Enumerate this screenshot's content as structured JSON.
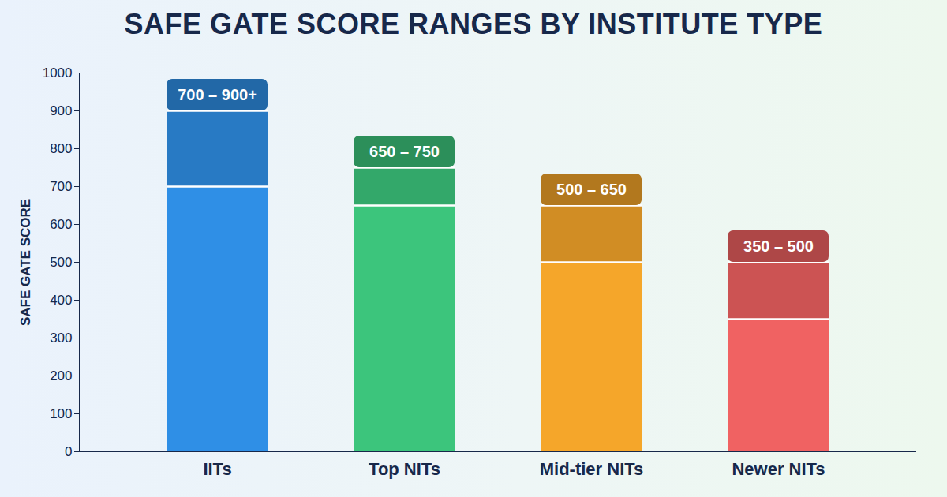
{
  "chart_data": {
    "type": "range",
    "title": "SAFE GATE SCORE RANGES BY INSTITUTE TYPE",
    "ylabel": "SAFE GATE SCORE",
    "categories": [
      "IITs",
      "Top NITs",
      "Mid-tier NITs",
      "Newer NITs"
    ],
    "values": [
      [
        700,
        900
      ],
      [
        650,
        750
      ],
      [
        500,
        650
      ],
      [
        350,
        500
      ]
    ],
    "value_labels": [
      "700 – 900+",
      "650 – 750",
      "500 – 650",
      "350 – 500"
    ],
    "colors": [
      "#2f8fe6",
      "#3cc57c",
      "#f5a62a",
      "#f06262"
    ],
    "ylim": [
      0,
      1000
    ],
    "yticks": [
      0,
      100,
      200,
      300,
      400,
      500,
      600,
      700,
      800,
      900,
      1000
    ],
    "grid": false,
    "data_labels": true
  }
}
